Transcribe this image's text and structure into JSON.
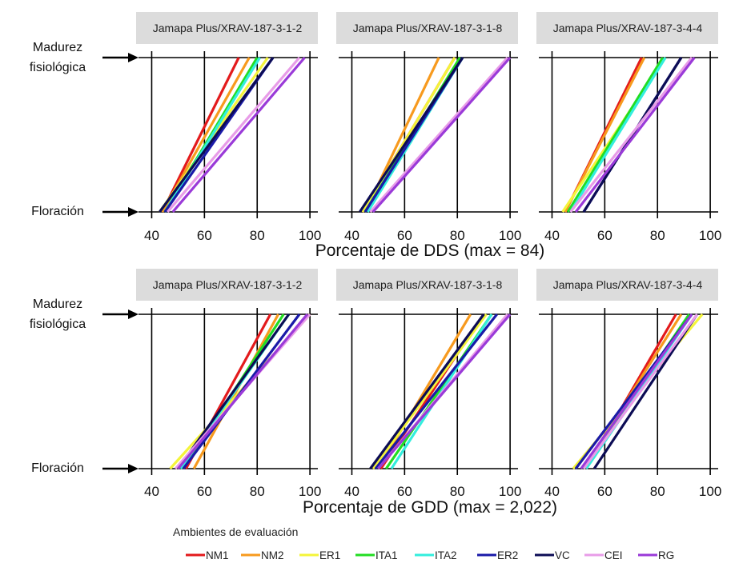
{
  "side_labels": {
    "maturity": [
      "Madurez",
      "fisiológica"
    ],
    "flowering": "Floración"
  },
  "legend": {
    "title": "Ambientes de evaluación",
    "items": [
      {
        "name": "NM1",
        "color": "#e31a1c"
      },
      {
        "name": "NM2",
        "color": "#f79a1e"
      },
      {
        "name": "ER1",
        "color": "#f4f43a"
      },
      {
        "name": "ITA1",
        "color": "#22dd22"
      },
      {
        "name": "ITA2",
        "color": "#33eedd"
      },
      {
        "name": "ER2",
        "color": "#1a1aa8"
      },
      {
        "name": "VC",
        "color": "#0c0c55"
      },
      {
        "name": "CEI",
        "color": "#e89ce8"
      },
      {
        "name": "RG",
        "color": "#9a3ad8"
      }
    ]
  },
  "chart_data": [
    {
      "type": "line",
      "row": 1,
      "xlabel": "Porcentaje de DDS (max = 84)",
      "xlim": [
        35,
        103
      ],
      "xticks": [
        40,
        60,
        80,
        100
      ],
      "y_levels": [
        "Floración",
        "Madurez fisiológica"
      ],
      "panels": [
        {
          "title": "Jamapa Plus/XRAV-187-3-1-2",
          "series": [
            {
              "name": "NM1",
              "x": [
                44,
                73
              ]
            },
            {
              "name": "NM2",
              "x": [
                44,
                77
              ]
            },
            {
              "name": "ER1",
              "x": [
                43,
                84
              ]
            },
            {
              "name": "ITA1",
              "x": [
                45,
                80
              ]
            },
            {
              "name": "ITA2",
              "x": [
                45,
                81
              ]
            },
            {
              "name": "ER2",
              "x": [
                45,
                86
              ]
            },
            {
              "name": "VC",
              "x": [
                43,
                86
              ]
            },
            {
              "name": "CEI",
              "x": [
                46,
                96
              ]
            },
            {
              "name": "RG",
              "x": [
                48,
                98
              ]
            }
          ]
        },
        {
          "title": "Jamapa Plus/XRAV-187-3-1-8",
          "series": [
            {
              "name": "NM1",
              "x": [
                44,
                79
              ]
            },
            {
              "name": "NM2",
              "x": [
                45,
                73
              ]
            },
            {
              "name": "ER1",
              "x": [
                44,
                79
              ]
            },
            {
              "name": "ITA1",
              "x": [
                45,
                81
              ]
            },
            {
              "name": "ITA2",
              "x": [
                46,
                82
              ]
            },
            {
              "name": "ER2",
              "x": [
                45,
                82
              ]
            },
            {
              "name": "VC",
              "x": [
                43,
                82
              ]
            },
            {
              "name": "CEI",
              "x": [
                47,
                99
              ]
            },
            {
              "name": "RG",
              "x": [
                48,
                100
              ]
            }
          ]
        },
        {
          "title": "Jamapa Plus/XRAV-187-3-4-4",
          "series": [
            {
              "name": "NM1",
              "x": [
                45,
                74
              ]
            },
            {
              "name": "NM2",
              "x": [
                45,
                75
              ]
            },
            {
              "name": "ER1",
              "x": [
                44,
                83
              ]
            },
            {
              "name": "ITA1",
              "x": [
                46,
                82
              ]
            },
            {
              "name": "ITA2",
              "x": [
                47,
                83
              ]
            },
            {
              "name": "ER2",
              "x": [
                52,
                89
              ]
            },
            {
              "name": "VC",
              "x": [
                52,
                89
              ]
            },
            {
              "name": "CEI",
              "x": [
                47,
                93
              ]
            },
            {
              "name": "RG",
              "x": [
                49,
                94
              ]
            }
          ]
        }
      ]
    },
    {
      "type": "line",
      "row": 2,
      "xlabel": "Porcentaje de GDD (max =  2,022)",
      "xlim": [
        35,
        103
      ],
      "xticks": [
        40,
        60,
        80,
        100
      ],
      "y_levels": [
        "Floración",
        "Madurez fisiológica"
      ],
      "panels": [
        {
          "title": "Jamapa Plus/XRAV-187-3-1-2",
          "series": [
            {
              "name": "NM1",
              "x": [
                53,
                85
              ]
            },
            {
              "name": "NM2",
              "x": [
                56,
                88
              ]
            },
            {
              "name": "ER1",
              "x": [
                47,
                100
              ]
            },
            {
              "name": "ITA1",
              "x": [
                52,
                90
              ]
            },
            {
              "name": "ITA2",
              "x": [
                51,
                92
              ]
            },
            {
              "name": "ER2",
              "x": [
                52,
                96
              ]
            },
            {
              "name": "VC",
              "x": [
                50,
                92
              ]
            },
            {
              "name": "CEI",
              "x": [
                49,
                100
              ]
            },
            {
              "name": "RG",
              "x": [
                50,
                99
              ]
            }
          ]
        },
        {
          "title": "Jamapa Plus/XRAV-187-3-1-8",
          "series": [
            {
              "name": "NM1",
              "x": [
                51,
                90
              ]
            },
            {
              "name": "NM2",
              "x": [
                50,
                85
              ]
            },
            {
              "name": "ER1",
              "x": [
                48,
                91
              ]
            },
            {
              "name": "ITA1",
              "x": [
                53,
                93
              ]
            },
            {
              "name": "ITA2",
              "x": [
                55,
                93
              ]
            },
            {
              "name": "ER2",
              "x": [
                49,
                95
              ]
            },
            {
              "name": "VC",
              "x": [
                47,
                90
              ]
            },
            {
              "name": "CEI",
              "x": [
                50,
                99
              ]
            },
            {
              "name": "RG",
              "x": [
                50,
                100
              ]
            }
          ]
        },
        {
          "title": "Jamapa Plus/XRAV-187-3-4-4",
          "series": [
            {
              "name": "NM1",
              "x": [
                53,
                87
              ]
            },
            {
              "name": "NM2",
              "x": [
                52,
                89
              ]
            },
            {
              "name": "ER1",
              "x": [
                48,
                97
              ]
            },
            {
              "name": "ITA1",
              "x": [
                52,
                92
              ]
            },
            {
              "name": "ITA2",
              "x": [
                53,
                93
              ]
            },
            {
              "name": "ER2",
              "x": [
                49,
                93
              ]
            },
            {
              "name": "VC",
              "x": [
                56,
                95
              ]
            },
            {
              "name": "CEI",
              "x": [
                52,
                95
              ]
            },
            {
              "name": "RG",
              "x": [
                51,
                93
              ]
            }
          ]
        }
      ]
    }
  ]
}
